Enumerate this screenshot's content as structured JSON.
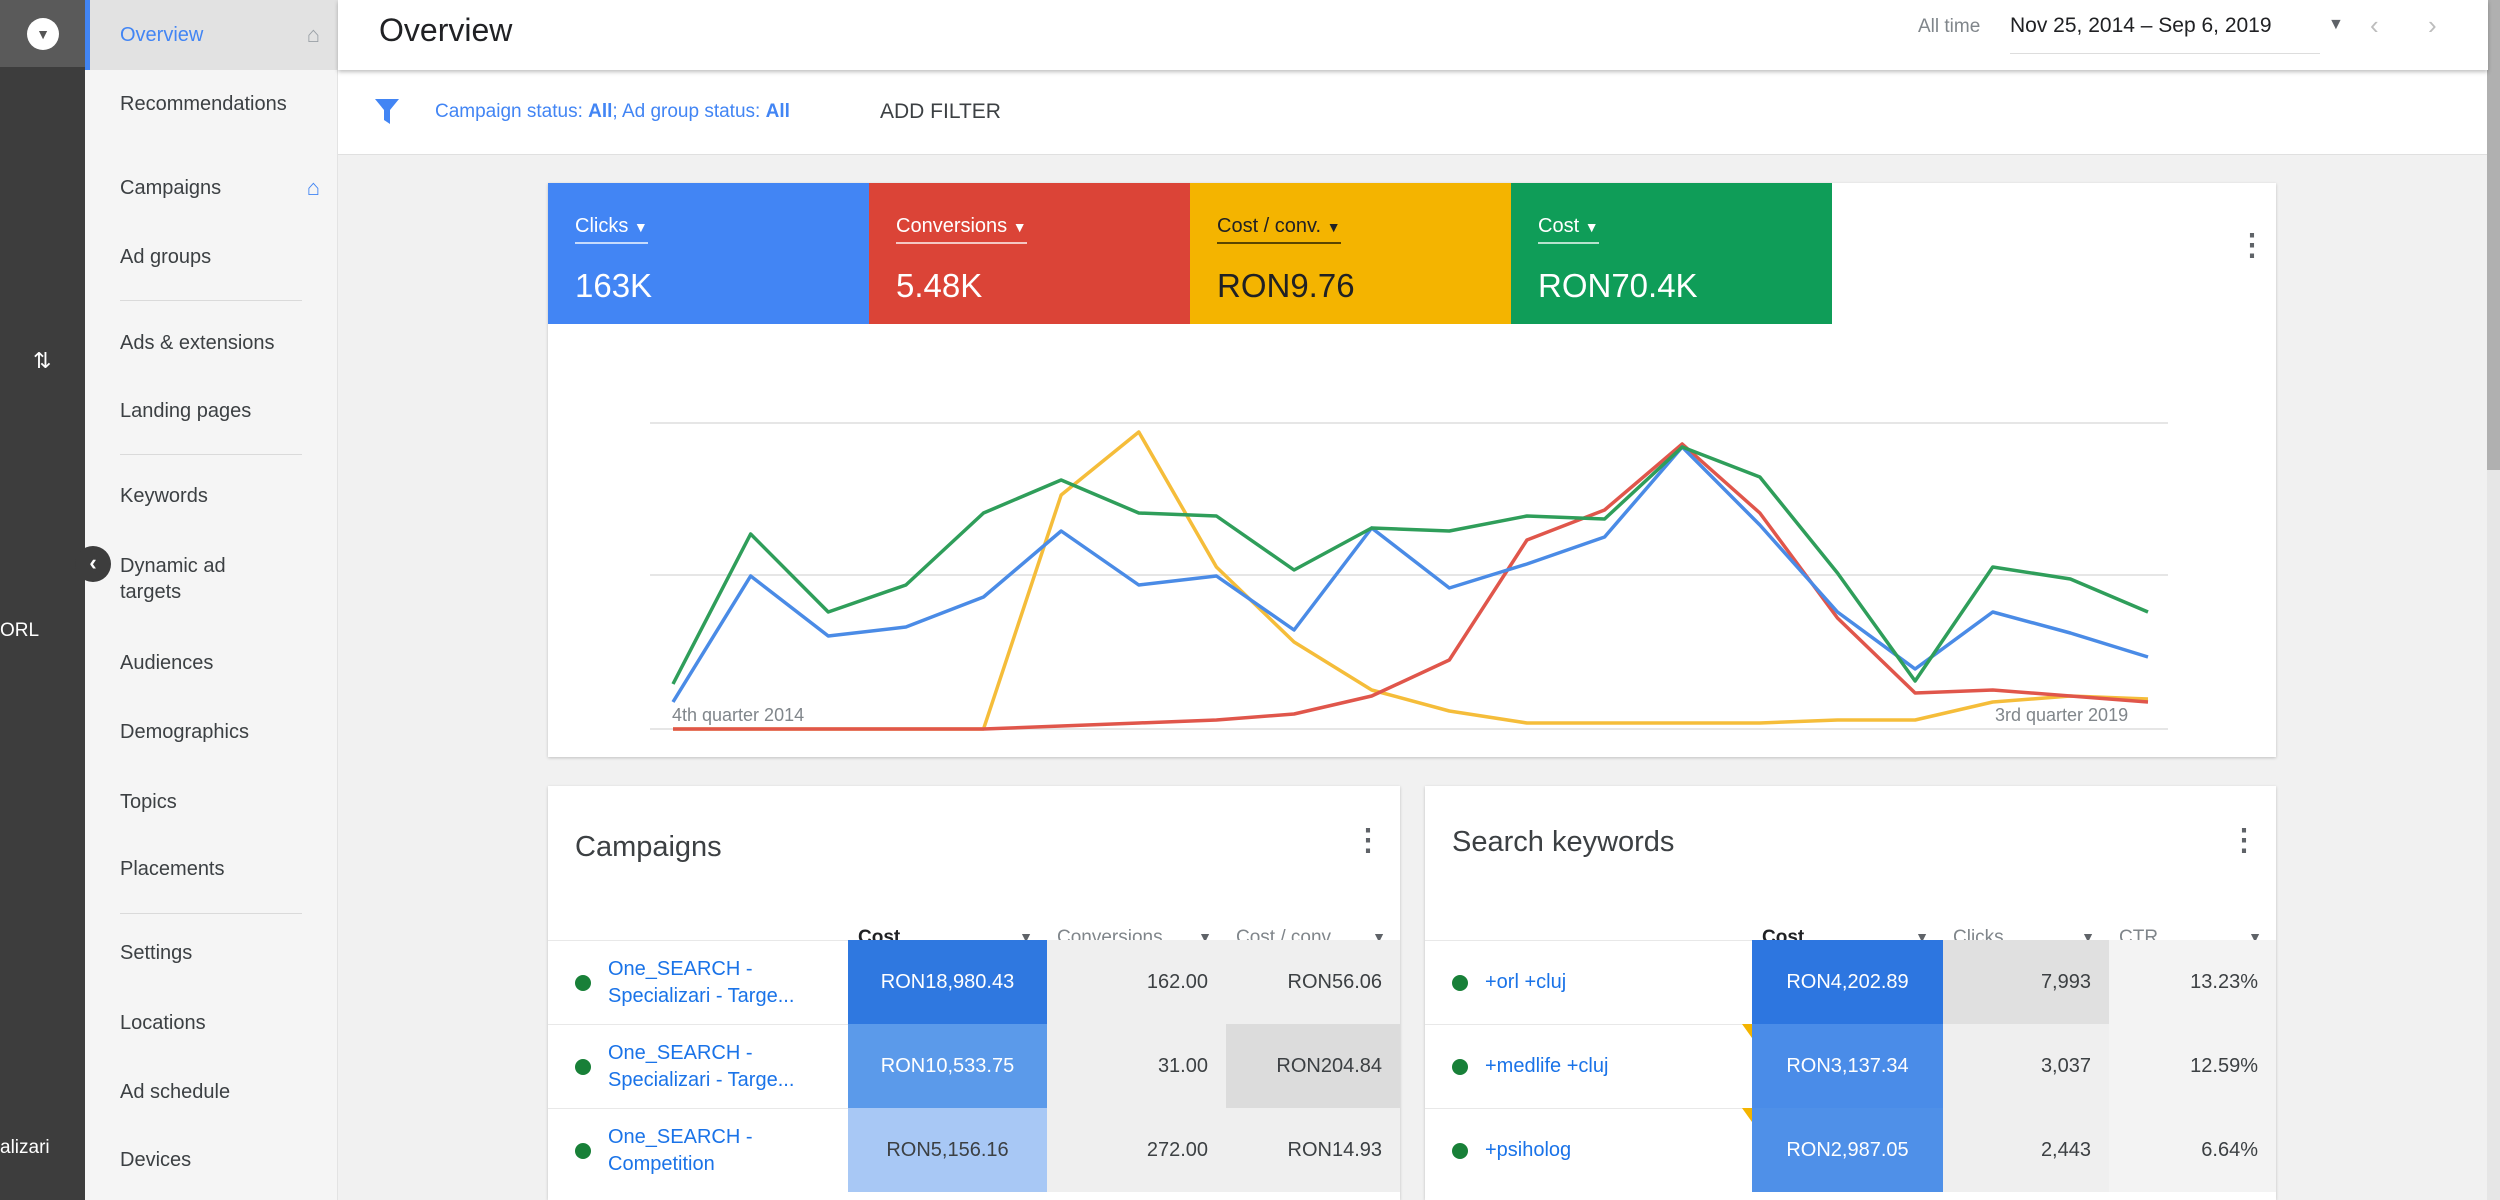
{
  "rail": {
    "snippet_1": "ORL",
    "snippet_2": "alizari"
  },
  "nav": {
    "items": [
      {
        "label": "Overview",
        "icon": "home-icon",
        "selected": true
      },
      {
        "label": "Recommendations"
      },
      {
        "label": "Campaigns",
        "icon": "home-icon"
      },
      {
        "label": "Ad groups"
      },
      {
        "label": "Ads & extensions"
      },
      {
        "label": "Landing pages"
      },
      {
        "label": "Keywords"
      },
      {
        "label": "Dynamic ad targets"
      },
      {
        "label": "Audiences"
      },
      {
        "label": "Demographics"
      },
      {
        "label": "Topics"
      },
      {
        "label": "Placements"
      },
      {
        "label": "Settings"
      },
      {
        "label": "Locations"
      },
      {
        "label": "Ad schedule"
      },
      {
        "label": "Devices"
      }
    ]
  },
  "header": {
    "title": "Overview",
    "range_label": "All time",
    "date_range": "Nov 25, 2014 – Sep 6, 2019"
  },
  "filter": {
    "campaign_label": "Campaign status: ",
    "campaign_value": "All",
    "sep": "; ",
    "adgroup_label": "Ad group status: ",
    "adgroup_value": "All",
    "add_filter": "ADD FILTER"
  },
  "metrics": [
    {
      "label": "Clicks",
      "value": "163K",
      "color": "#4285f4"
    },
    {
      "label": "Conversions",
      "value": "5.48K",
      "color": "#db4437"
    },
    {
      "label": "Cost / conv.",
      "value": "RON9.76",
      "color": "#f4b400"
    },
    {
      "label": "Cost",
      "value": "RON70.4K",
      "color": "#0f9d58"
    }
  ],
  "chart_data": {
    "type": "line",
    "x_start_label": "4th quarter 2014",
    "x_end_label": "3rd quarter 2019",
    "grid": true,
    "series": [
      {
        "name": "Clicks",
        "color": "#4a8be6",
        "values": [
          9,
          51,
          31,
          34,
          44,
          66,
          48,
          51,
          33,
          67,
          47,
          55,
          64,
          94,
          68,
          39,
          20,
          39,
          32,
          24
        ]
      },
      {
        "name": "Conversions",
        "color": "#e0564b",
        "values": [
          0,
          0,
          0,
          0,
          0,
          1,
          2,
          3,
          5,
          11,
          23,
          63,
          73,
          95,
          72,
          37,
          12,
          13,
          11,
          9
        ]
      },
      {
        "name": "Cost / conv.",
        "color": "#f5bd3a",
        "values": [
          0,
          0,
          0,
          0,
          0,
          78,
          99,
          54,
          29,
          13,
          6,
          2,
          2,
          2,
          2,
          3,
          3,
          9,
          11,
          10
        ]
      },
      {
        "name": "Cost",
        "color": "#2f9e5a",
        "values": [
          15,
          65,
          39,
          48,
          72,
          83,
          72,
          71,
          53,
          67,
          66,
          71,
          70,
          94,
          84,
          52,
          16,
          54,
          50,
          39
        ]
      }
    ]
  },
  "campaigns": {
    "title": "Campaigns",
    "columns": [
      "Cost",
      "Conversions",
      "Cost / conv."
    ],
    "rows": [
      {
        "name": "One_SEARCH - Specializari - Targe...",
        "cost": "RON18,980.43",
        "conv": "162.00",
        "cpc": "RON56.06"
      },
      {
        "name": "One_SEARCH - Specializari - Targe...",
        "cost": "RON10,533.75",
        "conv": "31.00",
        "cpc": "RON204.84"
      },
      {
        "name": "One_SEARCH - Competition",
        "cost": "RON5,156.16",
        "conv": "272.00",
        "cpc": "RON14.93"
      }
    ]
  },
  "keywords": {
    "title": "Search keywords",
    "columns": [
      "Cost",
      "Clicks",
      "CTR"
    ],
    "rows": [
      {
        "name": "+orl +cluj",
        "cost": "RON4,202.89",
        "clicks": "7,993",
        "ctr": "13.23%"
      },
      {
        "name": "+medlife +cluj",
        "cost": "RON3,137.34",
        "clicks": "3,037",
        "ctr": "12.59%"
      },
      {
        "name": "+psiholog",
        "cost": "RON2,987.05",
        "clicks": "2,443",
        "ctr": "6.64%"
      }
    ]
  }
}
